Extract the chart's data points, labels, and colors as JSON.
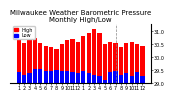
{
  "title": "Milwaukee Weather Barometric Pressure\nMonthly High/Low",
  "title_fontsize": 5.0,
  "background_color": "#ffffff",
  "red_color": "#ff0000",
  "blue_color": "#0000ff",
  "ylim": [
    29.0,
    31.3
  ],
  "yticks": [
    29.0,
    29.5,
    30.0,
    30.5,
    31.0
  ],
  "ytick_labels": [
    "29.0",
    "29.5",
    "30.0",
    "30.5",
    "31.0"
  ],
  "months": [
    "1",
    "2",
    "3",
    "4",
    "5",
    "6",
    "7",
    "8",
    "9",
    "10",
    "11",
    "12",
    "1",
    "2",
    "3",
    "4",
    "5",
    "6",
    "7",
    "8",
    "9",
    "10",
    "11",
    "12"
  ],
  "highs": [
    30.7,
    30.55,
    30.88,
    30.75,
    30.55,
    30.42,
    30.38,
    30.32,
    30.5,
    30.65,
    30.72,
    30.6,
    30.82,
    30.92,
    31.08,
    30.92,
    30.52,
    30.6,
    30.55,
    30.38,
    30.55,
    30.6,
    30.52,
    30.42
  ],
  "lows": [
    29.45,
    29.3,
    29.38,
    29.55,
    29.55,
    29.48,
    29.48,
    29.52,
    29.48,
    29.48,
    29.42,
    29.38,
    29.48,
    29.38,
    29.32,
    29.28,
    29.12,
    29.42,
    29.48,
    29.3,
    29.38,
    29.28,
    29.42,
    29.28
  ],
  "vline_x": 18.0,
  "bar_width": 0.8,
  "tick_fontsize": 3.5,
  "legend_fontsize": 3.5,
  "legend_labels": [
    "High",
    "Low"
  ]
}
